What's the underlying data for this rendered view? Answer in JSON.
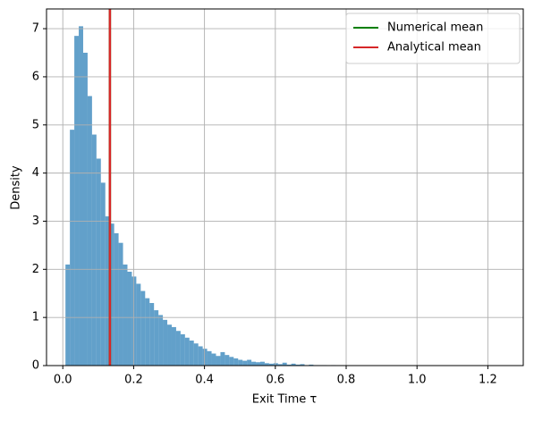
{
  "chart_data": {
    "type": "histogram",
    "xlabel": "Exit Time τ",
    "ylabel": "Density",
    "bins": [
      0.0075,
      0.02,
      0.0325,
      0.045,
      0.0575,
      0.07,
      0.0825,
      0.095,
      0.1075,
      0.12,
      0.1325,
      0.145,
      0.1575,
      0.17,
      0.1825,
      0.195,
      0.2075,
      0.22,
      0.2325,
      0.245,
      0.2575,
      0.27,
      0.2825,
      0.295,
      0.3075,
      0.32,
      0.3325,
      0.345,
      0.3575,
      0.37,
      0.3825,
      0.395,
      0.4075,
      0.42,
      0.4325,
      0.445,
      0.4575,
      0.47,
      0.4825,
      0.495,
      0.5075,
      0.52,
      0.5325,
      0.545,
      0.5575,
      0.57,
      0.5825,
      0.595,
      0.6075,
      0.62,
      0.6325,
      0.645,
      0.6575,
      0.67,
      0.6825,
      0.695,
      0.7075,
      0.72,
      0.7325,
      0.745,
      0.7575,
      0.77,
      0.7825,
      0.795,
      0.8075,
      0.82,
      0.8325,
      0.845,
      0.8575,
      0.87,
      0.8825,
      0.895,
      0.9075,
      0.92,
      0.9325,
      0.945,
      0.9575,
      0.97,
      0.9825,
      0.995,
      1.0075,
      1.02,
      1.0325,
      1.045,
      1.0575,
      1.07,
      1.0825,
      1.095,
      1.1075,
      1.12,
      1.1325,
      1.145,
      1.1575,
      1.17,
      1.1825,
      1.195,
      1.2075,
      1.22,
      1.2325,
      1.245,
      1.2575
    ],
    "values": [
      2.1,
      4.9,
      6.85,
      7.05,
      6.5,
      5.6,
      4.8,
      4.3,
      3.8,
      3.1,
      2.95,
      2.75,
      2.55,
      2.1,
      1.95,
      1.85,
      1.7,
      1.55,
      1.4,
      1.3,
      1.15,
      1.05,
      0.95,
      0.85,
      0.8,
      0.72,
      0.65,
      0.58,
      0.52,
      0.46,
      0.4,
      0.35,
      0.3,
      0.25,
      0.2,
      0.28,
      0.22,
      0.18,
      0.15,
      0.12,
      0.1,
      0.12,
      0.08,
      0.07,
      0.08,
      0.05,
      0.04,
      0.05,
      0.03,
      0.06,
      0.02,
      0.04,
      0.02,
      0.03,
      0.01,
      0.02,
      0.01,
      0.01,
      0.01,
      0.005,
      0.01,
      0.005,
      0,
      0.005,
      0.005,
      0,
      0.005,
      0,
      0.005,
      0,
      0,
      0.005,
      0,
      0,
      0.005,
      0,
      0,
      0,
      0,
      0,
      0,
      0,
      0,
      0.005,
      0,
      0,
      0,
      0,
      0,
      0,
      0,
      0,
      0,
      0,
      0,
      0,
      0,
      0,
      0,
      0.005
    ],
    "color": "#1f77b4",
    "vlines": [
      {
        "name": "Numerical mean",
        "color": "#008000",
        "value": 0.133
      },
      {
        "name": "Analytical mean",
        "color": "#d62728",
        "value": 0.133
      }
    ],
    "xlim": [
      -0.046,
      1.3
    ],
    "ylim": [
      0,
      7.41
    ],
    "xticks": [
      {
        "value": 0,
        "label": "0.0"
      },
      0.2,
      0.4,
      0.6,
      0.8,
      {
        "value": 1,
        "label": "1.0"
      },
      1.2
    ],
    "yticks": [
      0,
      1,
      2,
      3,
      4,
      5,
      6,
      7
    ],
    "grid": true,
    "legend": "upper right"
  }
}
